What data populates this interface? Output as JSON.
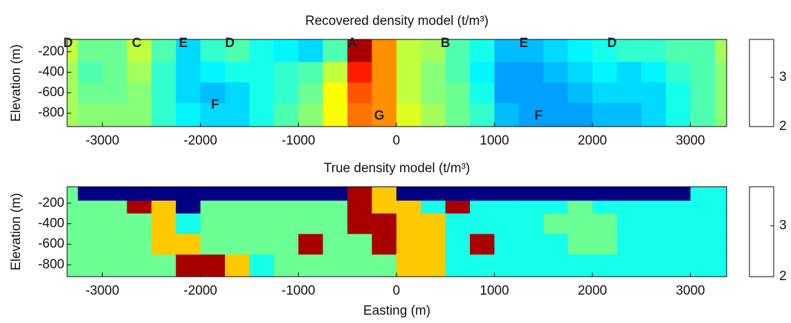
{
  "chart_data": [
    {
      "type": "heatmap",
      "title": "Recovered density model (t/m³)",
      "y_label": "Elevation (m)",
      "colormap": "jet",
      "xlim": [
        -3360,
        3370
      ],
      "ylim": [
        -930,
        -80
      ],
      "xticks": [
        -3000,
        -2000,
        -1000,
        0,
        1000,
        2000,
        3000
      ],
      "yticks": [
        -200,
        -400,
        -600,
        -800
      ],
      "clim": [
        2,
        3.77
      ],
      "cticks": [
        2,
        3
      ],
      "x_edges": [
        -3500,
        -3250,
        -3000,
        -2750,
        -2500,
        -2250,
        -2000,
        -1750,
        -1500,
        -1250,
        -1000,
        -750,
        -500,
        -250,
        0,
        250,
        500,
        750,
        1000,
        1250,
        1500,
        1750,
        2000,
        2250,
        2500,
        2750,
        3000,
        3250,
        3500
      ],
      "y_edges": [
        -75,
        -300,
        -500,
        -700,
        -950
      ],
      "z": [
        [
          3.0,
          2.85,
          2.85,
          3.0,
          2.8,
          2.6,
          2.75,
          2.8,
          2.7,
          2.65,
          2.6,
          2.8,
          3.7,
          3.3,
          3.0,
          2.95,
          2.8,
          2.7,
          2.55,
          2.55,
          2.6,
          2.65,
          2.7,
          2.75,
          2.75,
          2.8,
          2.8,
          2.95
        ],
        [
          2.95,
          2.8,
          2.85,
          2.95,
          2.75,
          2.6,
          2.65,
          2.7,
          2.7,
          2.75,
          2.8,
          3.0,
          3.5,
          3.3,
          3.0,
          2.9,
          2.8,
          2.65,
          2.5,
          2.5,
          2.55,
          2.6,
          2.65,
          2.6,
          2.65,
          2.75,
          2.8,
          2.9
        ],
        [
          2.95,
          2.85,
          2.85,
          2.9,
          2.75,
          2.6,
          2.55,
          2.6,
          2.7,
          2.75,
          2.85,
          3.1,
          3.4,
          3.3,
          3.0,
          2.9,
          2.85,
          2.7,
          2.5,
          2.5,
          2.5,
          2.55,
          2.6,
          2.6,
          2.6,
          2.7,
          2.8,
          2.9
        ],
        [
          2.95,
          2.9,
          2.9,
          2.9,
          2.75,
          2.65,
          2.6,
          2.6,
          2.7,
          2.8,
          2.9,
          3.1,
          3.35,
          3.3,
          3.05,
          2.95,
          2.85,
          2.75,
          2.55,
          2.5,
          2.5,
          2.5,
          2.55,
          2.55,
          2.6,
          2.7,
          2.8,
          2.9
        ]
      ],
      "annotations": [
        {
          "text": "D",
          "x": -3350,
          "y": -120
        },
        {
          "text": "C",
          "x": -2650,
          "y": -120
        },
        {
          "text": "E",
          "x": -2175,
          "y": -120
        },
        {
          "text": "D",
          "x": -1700,
          "y": -120
        },
        {
          "text": "A",
          "x": -450,
          "y": -120
        },
        {
          "text": "B",
          "x": 500,
          "y": -120
        },
        {
          "text": "E",
          "x": 1300,
          "y": -120
        },
        {
          "text": "D",
          "x": 2200,
          "y": -120
        },
        {
          "text": "F",
          "x": -1850,
          "y": -720
        },
        {
          "text": "G",
          "x": -175,
          "y": -830
        },
        {
          "text": "F",
          "x": 1450,
          "y": -830
        }
      ]
    },
    {
      "type": "heatmap",
      "title": "True density model (t/m³)",
      "x_label": "Easting (m)",
      "y_label": "Elevation (m)",
      "colormap": "jet",
      "xlim": [
        -3360,
        3370
      ],
      "ylim": [
        -915,
        -40
      ],
      "xticks": [
        -3000,
        -2000,
        -1000,
        0,
        1000,
        2000,
        3000
      ],
      "yticks": [
        -200,
        -400,
        -600,
        -800
      ],
      "clim": [
        2,
        3.77
      ],
      "cticks": [
        2,
        3
      ],
      "x_edges": [
        -3500,
        -3250,
        -3000,
        -2750,
        -2500,
        -2250,
        -2000,
        -1750,
        -1500,
        -1250,
        -1000,
        -750,
        -500,
        -250,
        0,
        250,
        500,
        750,
        1000,
        1250,
        1500,
        1750,
        2000,
        2250,
        2500,
        2750,
        3000,
        3250,
        3500
      ],
      "y_edges": [
        -40,
        -175,
        -300,
        -500,
        -700,
        -950
      ],
      "z": [
        [
          2.85,
          2.0,
          2.0,
          2.0,
          2.0,
          2.0,
          2.0,
          2.0,
          2.0,
          2.0,
          2.0,
          2.0,
          3.7,
          3.2,
          2.0,
          2.0,
          2.0,
          2.0,
          2.0,
          2.0,
          2.0,
          2.0,
          2.0,
          2.0,
          2.0,
          2.0,
          2.7,
          2.7
        ],
        [
          2.85,
          2.85,
          2.85,
          3.7,
          3.2,
          2.0,
          2.85,
          2.85,
          2.85,
          2.85,
          2.85,
          2.85,
          3.7,
          3.2,
          3.2,
          2.7,
          3.7,
          2.7,
          2.7,
          2.7,
          2.7,
          2.85,
          2.7,
          2.7,
          2.7,
          2.7,
          2.7,
          2.7
        ],
        [
          2.85,
          2.85,
          2.85,
          2.85,
          3.2,
          2.7,
          2.85,
          2.85,
          2.85,
          2.85,
          2.85,
          2.85,
          3.7,
          3.7,
          3.2,
          3.2,
          2.7,
          2.7,
          2.7,
          2.7,
          2.85,
          2.85,
          2.85,
          2.7,
          2.7,
          2.7,
          2.7,
          2.7
        ],
        [
          2.85,
          2.85,
          2.85,
          2.85,
          3.2,
          3.2,
          2.85,
          2.85,
          2.85,
          2.85,
          3.7,
          2.85,
          2.85,
          3.7,
          3.2,
          3.2,
          2.7,
          3.7,
          2.7,
          2.7,
          2.7,
          2.85,
          2.85,
          2.7,
          2.7,
          2.7,
          2.7,
          2.7
        ],
        [
          2.85,
          2.85,
          2.85,
          2.85,
          2.85,
          3.7,
          3.7,
          3.2,
          2.7,
          2.85,
          2.85,
          2.85,
          2.85,
          2.85,
          3.2,
          3.2,
          2.7,
          2.7,
          2.7,
          2.7,
          2.7,
          2.7,
          2.7,
          2.7,
          2.7,
          2.7,
          2.7,
          2.7
        ]
      ]
    }
  ]
}
